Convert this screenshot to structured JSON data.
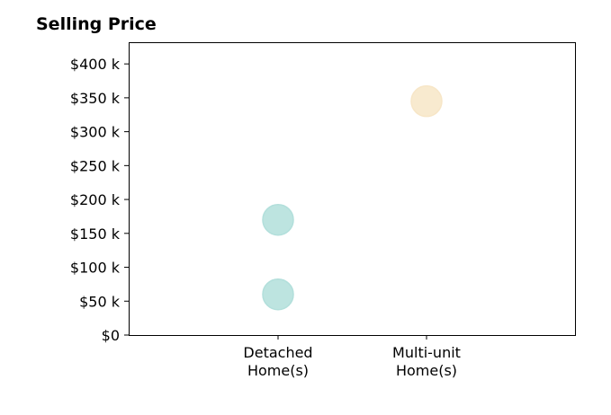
{
  "chart_data": {
    "type": "scatter",
    "title": "Selling Price",
    "categories": [
      "Detached\nHome(s)",
      "Multi-unit\nHome(s)"
    ],
    "ylim": [
      0,
      432000
    ],
    "yticks": [
      0,
      50000,
      100000,
      150000,
      200000,
      250000,
      300000,
      350000,
      400000
    ],
    "ytick_labels": [
      "$0",
      "$50 k",
      "$100 k",
      "$150 k",
      "$200 k",
      "$250 k",
      "$300 k",
      "$350 k",
      "$400 k"
    ],
    "grid": false,
    "legend": "none",
    "points": [
      {
        "category": 0,
        "value": 170000,
        "color": "#b2dfdb"
      },
      {
        "category": 0,
        "value": 60000,
        "color": "#b2dfdb"
      },
      {
        "category": 1,
        "value": 345000,
        "color": "#f7e6c7"
      }
    ]
  }
}
